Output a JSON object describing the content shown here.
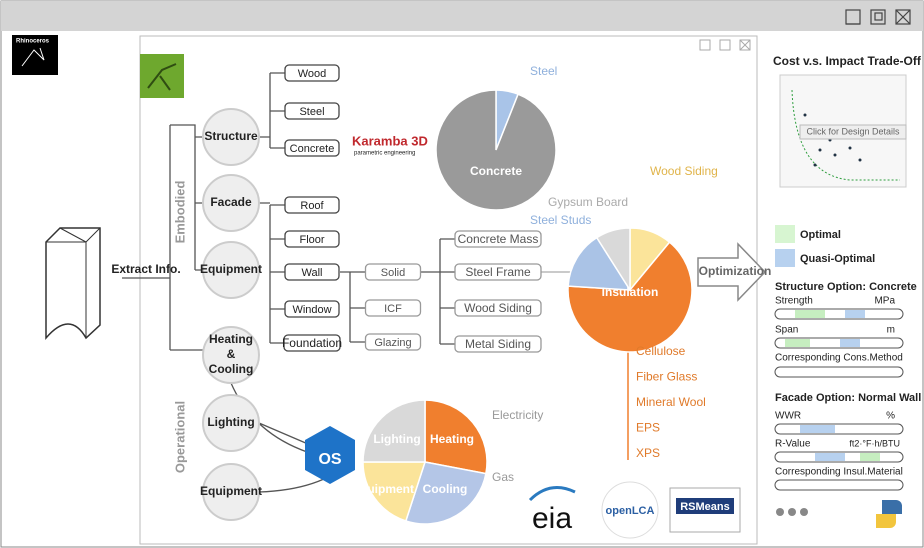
{
  "window": {
    "logo": "Rhinoceros"
  },
  "tree": {
    "root": "Extract Info.",
    "groups": [
      "Embodied",
      "Operational"
    ],
    "nodes": [
      "Structure",
      "Facade",
      "Equipment",
      "Heating & Cooling",
      "Lighting",
      "Equipment"
    ],
    "leaves": [
      "Wood",
      "Steel",
      "Concrete",
      "Roof",
      "Floor",
      "Wall",
      "Window",
      "Foundation"
    ],
    "wall_options": [
      "Solid",
      "ICF",
      "Glazing"
    ],
    "solid_options": [
      "Concrete Mass",
      "Steel Frame",
      "Wood Siding",
      "Metal Siding"
    ]
  },
  "karamba": {
    "name": "Karamba 3D",
    "tagline": "parametric engineering"
  },
  "pies": [
    {
      "labels": [
        "Steel",
        "Concrete"
      ],
      "values": [
        6,
        94
      ],
      "colors": [
        "#a9c4e8",
        "#9a9a9a"
      ]
    },
    {
      "labels": [
        "Wood Siding",
        "Insulation",
        "Steel Studs",
        "Gypsum Board"
      ],
      "values": [
        11,
        65,
        15,
        9
      ],
      "colors": [
        "#fbe49a",
        "#f07f2e",
        "#aac3e6",
        "#d9d9d9"
      ]
    },
    {
      "labels": [
        "Heating",
        "Cooling",
        "Equipment",
        "Lighting"
      ],
      "values": [
        28,
        27,
        20,
        25
      ],
      "colors": [
        "#f07f2e",
        "#b4c6e7",
        "#fbe49a",
        "#d9d9d9"
      ]
    }
  ],
  "insulation_materials": [
    "Cellulose",
    "Fiber Glass",
    "Mineral Wool",
    "EPS",
    "XPS"
  ],
  "energy_sources": [
    "Electricity",
    "Gas"
  ],
  "arrow": "Optimization",
  "logos": [
    "OS",
    "eia",
    "openLCA",
    "RSMeans"
  ],
  "panel": {
    "title": "Cost v.s. Impact Trade-Off",
    "tooltip": "Click for Design Details",
    "legend": [
      "Optimal",
      "Quasi-Optimal"
    ],
    "structure": {
      "title": "Structure Option: Concrete",
      "strength": "Strength",
      "strength_unit": "MPa",
      "span": "Span",
      "span_unit": "m",
      "method": "Corresponding Cons.Method"
    },
    "facade": {
      "title": "Facade Option: Normal Wall",
      "wwr": "WWR",
      "wwr_unit": "%",
      "rvalue": "R-Value",
      "rvalue_unit": "ft2·°F·h/BTU",
      "material": "Corresponding Insul.Material"
    }
  }
}
